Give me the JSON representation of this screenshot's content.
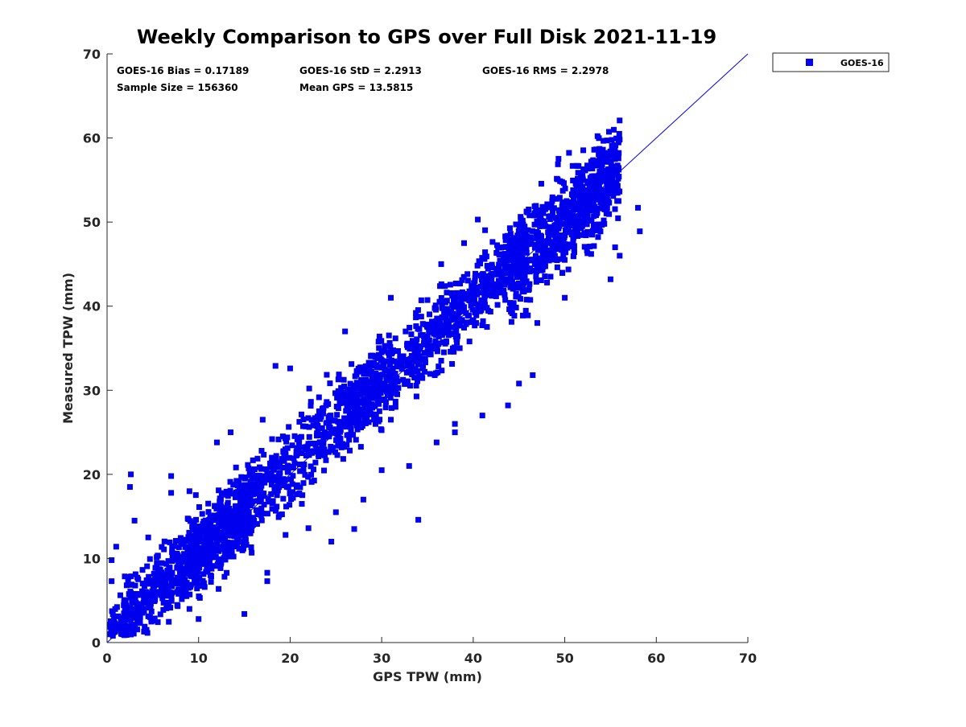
{
  "chart_data": {
    "type": "scatter",
    "title": "Weekly Comparison to GPS over Full Disk 2021-11-19",
    "xlabel": "GPS TPW (mm)",
    "ylabel": "Measured TPW (mm)",
    "xlim": [
      0,
      70
    ],
    "ylim": [
      0,
      70
    ],
    "xticks": [
      "0",
      "10",
      "20",
      "30",
      "40",
      "50",
      "60",
      "70"
    ],
    "yticks": [
      "0",
      "10",
      "20",
      "30",
      "40",
      "50",
      "60",
      "70"
    ],
    "grid": false,
    "legend_placement": "outside-top-right",
    "series": [
      {
        "name": "GOES-16",
        "color": "#0000ee",
        "marker": "square",
        "points": [
          [
            2.6,
            20.0
          ],
          [
            2.5,
            18.5
          ],
          [
            7.0,
            19.8
          ],
          [
            7.0,
            17.8
          ],
          [
            9.0,
            18.0
          ],
          [
            10.0,
            2.8
          ],
          [
            17.5,
            7.3
          ],
          [
            17.5,
            8.3
          ],
          [
            34.0,
            14.6
          ],
          [
            43.8,
            28.2
          ],
          [
            46.5,
            31.8
          ],
          [
            45.0,
            30.8
          ],
          [
            41.0,
            27.0
          ],
          [
            38.0,
            26.0
          ],
          [
            31.0,
            26.5
          ],
          [
            56.0,
            59.8
          ],
          [
            54.8,
            57.2
          ],
          [
            55.5,
            57.5
          ],
          [
            52.0,
            55.0
          ],
          [
            53.0,
            55.3
          ],
          [
            58.0,
            51.7
          ],
          [
            58.2,
            48.9
          ],
          [
            55.5,
            47.0
          ],
          [
            56.0,
            46.0
          ],
          [
            55.0,
            43.2
          ],
          [
            47.0,
            38.0
          ],
          [
            50.0,
            41.0
          ],
          [
            20.0,
            32.6
          ],
          [
            18.4,
            32.9
          ],
          [
            17.0,
            26.5
          ],
          [
            12.0,
            23.8
          ],
          [
            13.5,
            25.0
          ],
          [
            0.5,
            9.8
          ],
          [
            0.5,
            7.3
          ],
          [
            1.0,
            11.4
          ],
          [
            3.0,
            14.5
          ],
          [
            4.5,
            12.5
          ],
          [
            26.0,
            37.0
          ],
          [
            31.0,
            41.0
          ],
          [
            36.5,
            45.0
          ],
          [
            40.5,
            50.3
          ],
          [
            43.5,
            48.3
          ],
          [
            39.0,
            47.5
          ],
          [
            22.0,
            13.6
          ],
          [
            25.0,
            15.5
          ],
          [
            28.0,
            17.0
          ],
          [
            30.0,
            20.5
          ],
          [
            33.0,
            21.0
          ],
          [
            36.0,
            23.8
          ],
          [
            38.0,
            25.0
          ],
          [
            27.0,
            13.5
          ],
          [
            24.5,
            12.0
          ],
          [
            19.5,
            12.8
          ],
          [
            15.0,
            3.4
          ],
          [
            9.0,
            4.0
          ]
        ],
        "clusters": [
          {
            "x_range": [
              0.3,
              16
            ],
            "center_slope": 1.0,
            "center_offset": 0.8,
            "spread": 2.0,
            "min_y": 0.8
          },
          {
            "x_range": [
              8,
              30
            ],
            "center_slope": 1.02,
            "center_offset": 0.6,
            "spread": 2.4,
            "min_y": 2.0
          },
          {
            "x_range": [
              26,
              46
            ],
            "center_slope": 1.0,
            "center_offset": 1.0,
            "spread": 2.2,
            "min_y": 10.0
          },
          {
            "x_range": [
              44,
              56
            ],
            "center_slope": 0.98,
            "center_offset": 1.2,
            "spread": 2.8,
            "min_y": 30.0
          }
        ]
      }
    ],
    "reference_line": {
      "name": "1:1",
      "x": [
        0,
        70
      ],
      "y": [
        0,
        70
      ],
      "color": "#0000ee"
    },
    "annotations": [
      "GOES-16 Bias = 0.17189",
      "GOES-16 StD = 2.2913",
      "GOES-16 RMS = 2.2978",
      "Sample Size = 156360",
      "Mean GPS = 13.5815"
    ]
  }
}
